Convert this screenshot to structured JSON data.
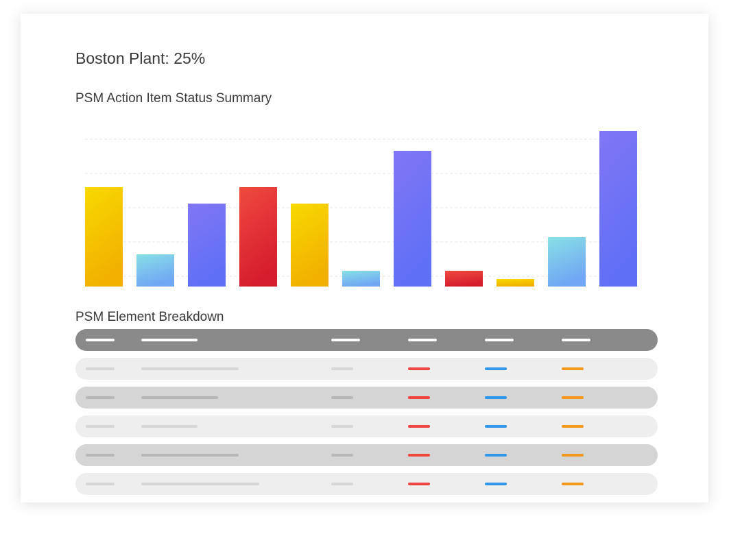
{
  "header": {
    "title": "Boston Plant: 25%"
  },
  "chart_data": {
    "type": "bar",
    "title": "PSM Action Item Status Summary",
    "values": [
      145,
      47,
      121,
      145,
      121,
      23,
      198,
      23,
      11,
      72,
      227
    ],
    "colors": [
      [
        "#f8da00",
        "#f2b000"
      ],
      [
        "#88e0e6",
        "#70a6f4"
      ],
      [
        "#8176f5",
        "#5f70f6"
      ],
      [
        "#ef4a3f",
        "#d61d2e"
      ],
      [
        "#f8da00",
        "#f2b000"
      ],
      [
        "#88e0e6",
        "#70a6f4"
      ],
      [
        "#8176f5",
        "#5f70f6"
      ],
      [
        "#ef4a3f",
        "#d61d2e"
      ],
      [
        "#f8da00",
        "#f2b000"
      ],
      [
        "#88e0e6",
        "#70a6f4"
      ],
      [
        "#8176f5",
        "#5f70f6"
      ]
    ],
    "ylim": [
      0,
      230
    ],
    "gridlines": [
      15,
      65,
      115,
      165,
      215
    ],
    "grid": true
  },
  "table": {
    "title": "PSM Element Breakdown"
  }
}
